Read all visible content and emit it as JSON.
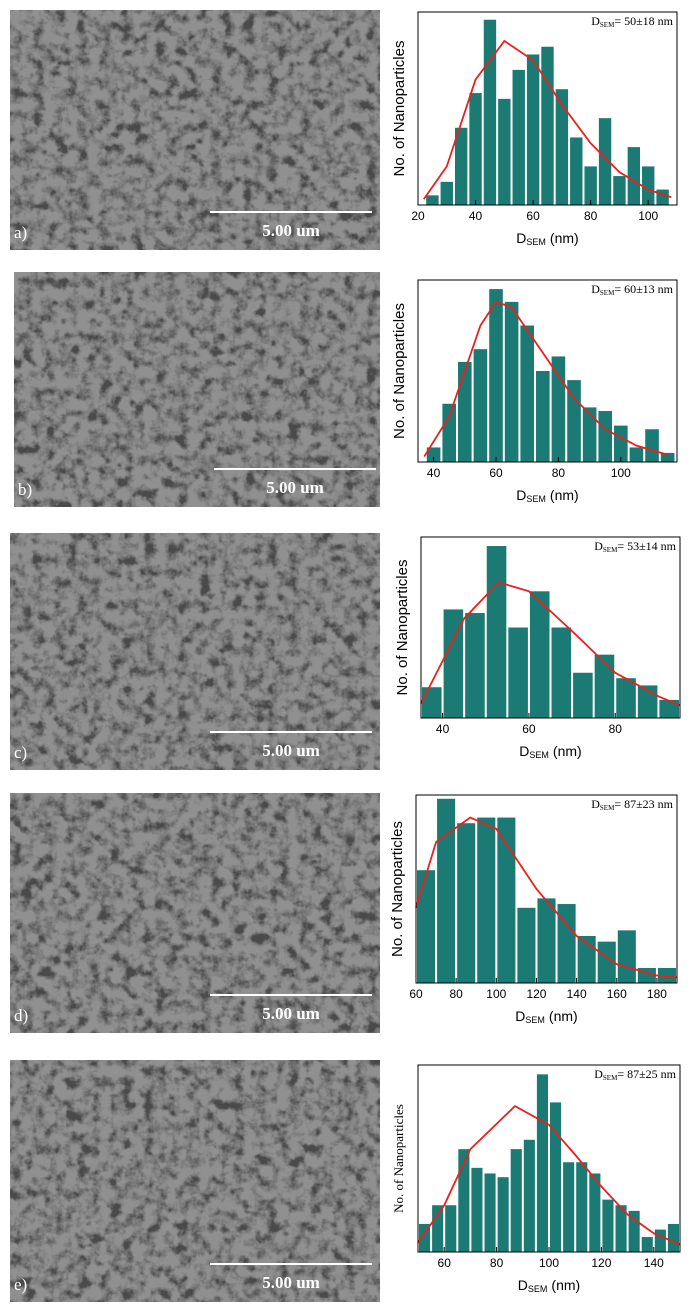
{
  "images": [
    {
      "label": "a)",
      "scale": "5.00 um"
    },
    {
      "label": "b)",
      "scale": "5.00 um"
    },
    {
      "label": "c)",
      "scale": "5.00 um"
    },
    {
      "label": "d)",
      "scale": "5.00 um"
    },
    {
      "label": "e)",
      "scale": "5.00 um"
    }
  ],
  "chart_data": [
    {
      "type": "histogram",
      "ylabel": "No. of Nanoparticles",
      "xlabel": [
        "D",
        "SEM",
        "(nm)"
      ],
      "annotation": [
        "D",
        "SEM",
        "= 50±18 nm"
      ],
      "color": "#1b7a74",
      "bins": [
        22.5,
        27.5,
        32.5,
        37.5,
        42.5,
        47.5,
        52.5,
        57.5,
        62.5,
        67.5,
        72.5,
        77.5,
        82.5,
        87.5,
        92.5,
        97.5,
        102.5,
        107.5
      ],
      "values": [
        5,
        12,
        40,
        58,
        96,
        55,
        70,
        78,
        82,
        60,
        35,
        20,
        45,
        15,
        30,
        20,
        8
      ],
      "fit": {
        "color": "#e8201e",
        "x": [
          22,
          30,
          40,
          50,
          60,
          70,
          80,
          90,
          100,
          108
        ],
        "y": [
          3,
          20,
          65,
          85,
          75,
          52,
          32,
          17,
          8,
          4
        ]
      },
      "xlim": [
        20,
        110
      ],
      "xticks": [
        20,
        40,
        60,
        80,
        100
      ],
      "ylim": [
        0,
        100
      ]
    },
    {
      "type": "histogram",
      "ylabel": "No. of Nanoparticles",
      "xlabel": [
        "D",
        "SEM",
        "(nm)"
      ],
      "annotation": [
        "D",
        "SEM",
        "= 60±13 nm"
      ],
      "color": "#1b7a74",
      "bins": [
        37.5,
        42.5,
        47.5,
        52.5,
        57.5,
        62.5,
        67.5,
        72.5,
        77.5,
        82.5,
        87.5,
        92.5,
        97.5,
        102.5,
        107.5,
        112.5,
        117.5
      ],
      "values": [
        8,
        32,
        55,
        62,
        95,
        88,
        75,
        50,
        58,
        45,
        30,
        28,
        20,
        8,
        18,
        5
      ],
      "fit": {
        "color": "#e8201e",
        "x": [
          37,
          45,
          55,
          60,
          65,
          75,
          85,
          95,
          105,
          115
        ],
        "y": [
          3,
          25,
          75,
          88,
          85,
          60,
          35,
          18,
          9,
          4
        ]
      },
      "xlim": [
        35,
        118
      ],
      "xticks": [
        40,
        60,
        80,
        100
      ],
      "ylim": [
        0,
        100
      ]
    },
    {
      "type": "histogram",
      "ylabel": "No. of Nanoparticles",
      "xlabel": [
        "D",
        "SEM",
        "(nm)"
      ],
      "annotation": [
        "D",
        "SEM",
        "= 53±14 nm"
      ],
      "color": "#1b7a74",
      "bins": [
        35,
        40,
        45,
        50,
        55,
        60,
        65,
        70,
        75,
        80,
        85,
        90,
        95
      ],
      "values": [
        17,
        60,
        58,
        95,
        50,
        70,
        50,
        25,
        35,
        22,
        18,
        10
      ],
      "fit": {
        "color": "#e8201e",
        "x": [
          35,
          45,
          53,
          60,
          70,
          80,
          90,
          95
        ],
        "y": [
          8,
          55,
          75,
          70,
          48,
          25,
          12,
          7
        ]
      },
      "xlim": [
        35,
        95
      ],
      "xticks": [
        40,
        60,
        80
      ],
      "ylim": [
        0,
        100
      ]
    },
    {
      "type": "histogram",
      "ylabel": "No. of Nanoparticles",
      "xlabel": [
        "D",
        "SEM",
        "(nm)"
      ],
      "annotation": [
        "D",
        "SEM",
        "= 87±23 nm"
      ],
      "color": "#1b7a74",
      "bins": [
        60,
        70,
        80,
        90,
        100,
        110,
        120,
        130,
        140,
        150,
        160,
        170,
        180,
        190
      ],
      "values": [
        60,
        98,
        85,
        88,
        88,
        40,
        45,
        42,
        25,
        22,
        28,
        8,
        8
      ],
      "fit": {
        "color": "#e8201e",
        "x": [
          60,
          70,
          87,
          100,
          120,
          140,
          160,
          180,
          190
        ],
        "y": [
          40,
          75,
          88,
          82,
          50,
          25,
          10,
          4,
          3
        ]
      },
      "xlim": [
        60,
        190
      ],
      "xticks": [
        60,
        80,
        100,
        120,
        140,
        160,
        180
      ],
      "ylim": [
        0,
        100
      ]
    },
    {
      "type": "histogram",
      "ylabel": "No. of Nanoparticles",
      "xlabel": [
        "D",
        "SEM",
        "(nm)"
      ],
      "annotation": [
        "D",
        "SEM",
        "= 87±25 nm"
      ],
      "color": "#1b7a74",
      "bins": [
        50,
        55,
        60,
        65,
        70,
        75,
        80,
        85,
        90,
        95,
        100,
        105,
        110,
        115,
        120,
        125,
        130,
        135,
        140,
        145,
        150
      ],
      "values": [
        15,
        25,
        25,
        55,
        45,
        42,
        40,
        55,
        60,
        95,
        80,
        48,
        48,
        42,
        28,
        25,
        22,
        8,
        12,
        15
      ],
      "fit": {
        "color": "#e8201e",
        "x": [
          50,
          60,
          70,
          87,
          100,
          110,
          120,
          130,
          140,
          150
        ],
        "y": [
          5,
          25,
          55,
          78,
          68,
          52,
          35,
          20,
          10,
          4
        ]
      },
      "xlim": [
        50,
        150
      ],
      "xticks": [
        60,
        80,
        100,
        120,
        140
      ],
      "ylim": [
        0,
        100
      ]
    }
  ]
}
